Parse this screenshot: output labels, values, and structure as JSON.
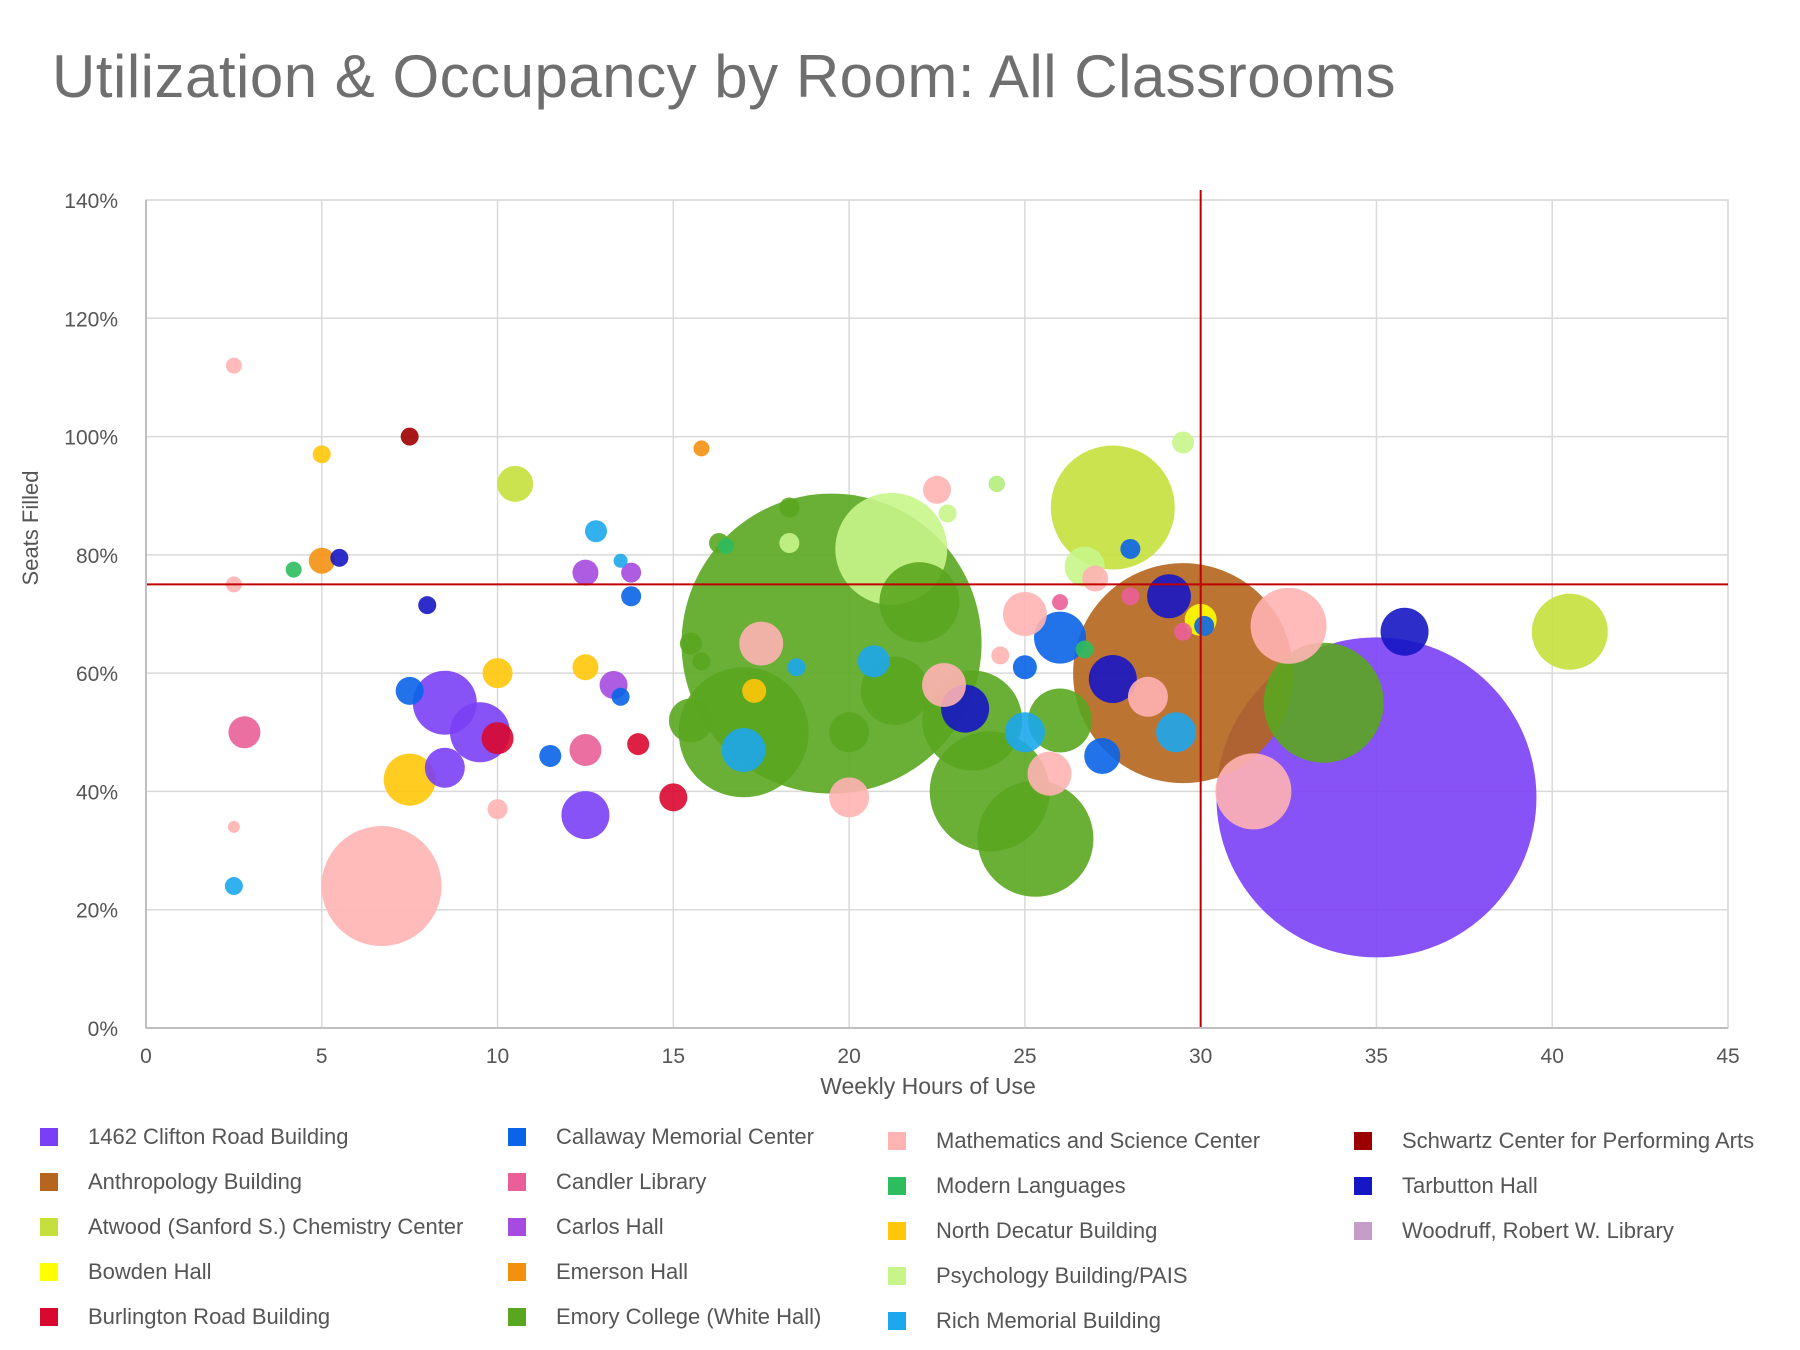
{
  "chart_data": {
    "type": "scatter",
    "title": "Utilization & Occupancy by Room: All Classrooms",
    "xlabel": "Weekly Hours  of Use",
    "ylabel": "Seats Filled",
    "xlim": [
      0,
      45
    ],
    "ylim": [
      0,
      140
    ],
    "x_ticks": [
      "0",
      "5",
      "10",
      "15",
      "20",
      "25",
      "30",
      "35",
      "40",
      "45"
    ],
    "y_ticks": [
      "0%",
      "20%",
      "40%",
      "60%",
      "80%",
      "100%",
      "120%",
      "140%"
    ],
    "grid": true,
    "reference_lines": {
      "x": 30,
      "y": 75,
      "color": "#c00000"
    },
    "legend_position": "bottom",
    "series": [
      {
        "name": "1462 Clifton Road Building",
        "color": "#7a3ff5",
        "points": [
          {
            "x": 35,
            "y": 39,
            "size": 160
          },
          {
            "x": 8.5,
            "y": 55,
            "size": 32
          },
          {
            "x": 9.5,
            "y": 50,
            "size": 30
          },
          {
            "x": 8.5,
            "y": 44,
            "size": 20
          },
          {
            "x": 12.5,
            "y": 36,
            "size": 24
          }
        ]
      },
      {
        "name": "Anthropology Building",
        "color": "#b5651d",
        "points": [
          {
            "x": 29.5,
            "y": 60,
            "size": 110
          }
        ]
      },
      {
        "name": "Atwood (Sanford S.) Chemistry Center",
        "color": "#c5e03c",
        "points": [
          {
            "x": 27.5,
            "y": 88,
            "size": 62
          },
          {
            "x": 40.5,
            "y": 67,
            "size": 38
          },
          {
            "x": 10.5,
            "y": 92,
            "size": 18
          }
        ]
      },
      {
        "name": "Bowden Hall",
        "color": "#ffff00",
        "points": [
          {
            "x": 30,
            "y": 69,
            "size": 16
          }
        ]
      },
      {
        "name": "Burlington Road Building",
        "color": "#d9082f",
        "points": [
          {
            "x": 10,
            "y": 49,
            "size": 16
          },
          {
            "x": 15,
            "y": 39,
            "size": 14
          },
          {
            "x": 14,
            "y": 48,
            "size": 11
          }
        ]
      },
      {
        "name": "Callaway Memorial Center",
        "color": "#0a64e8",
        "points": [
          {
            "x": 26,
            "y": 66,
            "size": 26
          },
          {
            "x": 7.5,
            "y": 57,
            "size": 14
          },
          {
            "x": 11.5,
            "y": 46,
            "size": 11
          },
          {
            "x": 13.8,
            "y": 73,
            "size": 10
          },
          {
            "x": 13.5,
            "y": 56,
            "size": 9
          },
          {
            "x": 25,
            "y": 61,
            "size": 12
          },
          {
            "x": 27.2,
            "y": 46,
            "size": 18
          },
          {
            "x": 28,
            "y": 81,
            "size": 10
          },
          {
            "x": 30.1,
            "y": 68,
            "size": 10
          }
        ]
      },
      {
        "name": "Candler Library",
        "color": "#ea5f98",
        "points": [
          {
            "x": 2.8,
            "y": 50,
            "size": 16
          },
          {
            "x": 12.5,
            "y": 47,
            "size": 16
          },
          {
            "x": 28,
            "y": 73,
            "size": 9
          },
          {
            "x": 26,
            "y": 72,
            "size": 8
          },
          {
            "x": 29.5,
            "y": 67,
            "size": 9
          }
        ]
      },
      {
        "name": "Carlos Hall",
        "color": "#a54be0",
        "points": [
          {
            "x": 12.5,
            "y": 77,
            "size": 13
          },
          {
            "x": 13.3,
            "y": 58,
            "size": 14
          },
          {
            "x": 13.8,
            "y": 77,
            "size": 10
          }
        ]
      },
      {
        "name": "Emerson Hall",
        "color": "#f4900f",
        "points": [
          {
            "x": 5,
            "y": 79,
            "size": 13
          },
          {
            "x": 15.8,
            "y": 98,
            "size": 8
          }
        ]
      },
      {
        "name": "Emory College (White Hall)",
        "color": "#5aa620",
        "points": [
          {
            "x": 19.5,
            "y": 65,
            "size": 150
          },
          {
            "x": 17,
            "y": 50,
            "size": 65
          },
          {
            "x": 24,
            "y": 40,
            "size": 60
          },
          {
            "x": 25.3,
            "y": 32,
            "size": 58
          },
          {
            "x": 33.5,
            "y": 55,
            "size": 60
          },
          {
            "x": 23.5,
            "y": 52,
            "size": 50
          },
          {
            "x": 22,
            "y": 72,
            "size": 40
          },
          {
            "x": 21.3,
            "y": 57,
            "size": 34
          },
          {
            "x": 26,
            "y": 52,
            "size": 32
          },
          {
            "x": 20,
            "y": 50,
            "size": 20
          },
          {
            "x": 15.5,
            "y": 52,
            "size": 22
          },
          {
            "x": 18.3,
            "y": 88,
            "size": 10
          },
          {
            "x": 16.3,
            "y": 82,
            "size": 10
          },
          {
            "x": 15.5,
            "y": 65,
            "size": 11
          },
          {
            "x": 15.8,
            "y": 62,
            "size": 9
          }
        ]
      },
      {
        "name": "Mathematics and Science Center",
        "color": "#ffb3b3",
        "points": [
          {
            "x": 6.7,
            "y": 24,
            "size": 60
          },
          {
            "x": 32.5,
            "y": 68,
            "size": 38
          },
          {
            "x": 31.5,
            "y": 40,
            "size": 38
          },
          {
            "x": 25,
            "y": 70,
            "size": 22
          },
          {
            "x": 17.5,
            "y": 65,
            "size": 22
          },
          {
            "x": 22.7,
            "y": 58,
            "size": 22
          },
          {
            "x": 25.7,
            "y": 43,
            "size": 22
          },
          {
            "x": 20,
            "y": 39,
            "size": 20
          },
          {
            "x": 28.5,
            "y": 56,
            "size": 20
          },
          {
            "x": 22.5,
            "y": 91,
            "size": 14
          },
          {
            "x": 27,
            "y": 76,
            "size": 13
          },
          {
            "x": 10,
            "y": 37,
            "size": 10
          },
          {
            "x": 24.3,
            "y": 63,
            "size": 9
          },
          {
            "x": 2.5,
            "y": 112,
            "size": 8
          },
          {
            "x": 2.5,
            "y": 75,
            "size": 8
          },
          {
            "x": 2.5,
            "y": 34,
            "size": 6
          }
        ]
      },
      {
        "name": "Modern Languages",
        "color": "#2ebd5e",
        "points": [
          {
            "x": 4.2,
            "y": 77.5,
            "size": 8
          },
          {
            "x": 16.5,
            "y": 81.5,
            "size": 8
          },
          {
            "x": 26.7,
            "y": 64,
            "size": 9
          },
          {
            "x": 24.2,
            "y": 92,
            "size": 8
          }
        ]
      },
      {
        "name": "North Decatur Building",
        "color": "#ffc60a",
        "points": [
          {
            "x": 7.5,
            "y": 42,
            "size": 26
          },
          {
            "x": 10,
            "y": 60,
            "size": 15
          },
          {
            "x": 12.5,
            "y": 61,
            "size": 13
          },
          {
            "x": 5,
            "y": 97,
            "size": 9
          },
          {
            "x": 17.3,
            "y": 57,
            "size": 12
          }
        ]
      },
      {
        "name": "Psychology Building/PAIS",
        "color": "#c8f58a",
        "points": [
          {
            "x": 21.2,
            "y": 81,
            "size": 56
          },
          {
            "x": 26.7,
            "y": 78,
            "size": 20
          },
          {
            "x": 18.3,
            "y": 82,
            "size": 10
          },
          {
            "x": 29.5,
            "y": 99,
            "size": 11
          },
          {
            "x": 24.2,
            "y": 92,
            "size": 8
          },
          {
            "x": 22.8,
            "y": 87,
            "size": 9
          }
        ]
      },
      {
        "name": "Rich Memorial Building",
        "color": "#1da7ec",
        "points": [
          {
            "x": 17,
            "y": 47,
            "size": 22
          },
          {
            "x": 25,
            "y": 50,
            "size": 20
          },
          {
            "x": 29.3,
            "y": 50,
            "size": 20
          },
          {
            "x": 20.7,
            "y": 62,
            "size": 16
          },
          {
            "x": 12.8,
            "y": 84,
            "size": 11
          },
          {
            "x": 2.5,
            "y": 24,
            "size": 9
          },
          {
            "x": 18.5,
            "y": 61,
            "size": 9
          },
          {
            "x": 13.5,
            "y": 79,
            "size": 7
          }
        ]
      },
      {
        "name": "Schwartz Center for Performing Arts",
        "color": "#9d0000",
        "points": [
          {
            "x": 7.5,
            "y": 100,
            "size": 9
          }
        ]
      },
      {
        "name": "Tarbutton Hall",
        "color": "#1616c4",
        "points": [
          {
            "x": 23.3,
            "y": 54,
            "size": 24
          },
          {
            "x": 27.5,
            "y": 59,
            "size": 24
          },
          {
            "x": 29.1,
            "y": 73,
            "size": 22
          },
          {
            "x": 35.8,
            "y": 67,
            "size": 24
          },
          {
            "x": 5.5,
            "y": 79.5,
            "size": 9
          },
          {
            "x": 8,
            "y": 71.5,
            "size": 9
          }
        ]
      },
      {
        "name": "Woodruff, Robert W. Library",
        "color": "#c49dc9",
        "points": []
      }
    ]
  }
}
